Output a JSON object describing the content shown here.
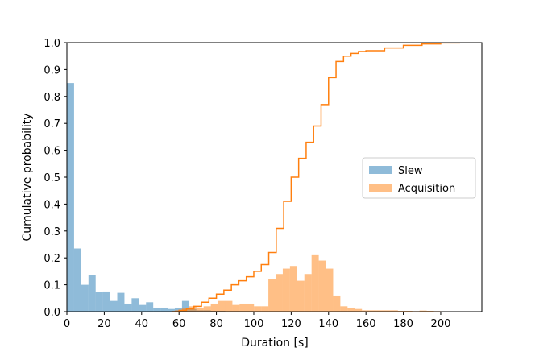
{
  "chart_data": {
    "type": "histogram",
    "xlabel": "Duration [s]",
    "ylabel": "Cumulative probability",
    "xlim": [
      0,
      222
    ],
    "ylim": [
      0,
      1.0
    ],
    "xticks": [
      0,
      20,
      40,
      60,
      80,
      100,
      120,
      140,
      160,
      180,
      200
    ],
    "yticks": [
      0.0,
      0.1,
      0.2,
      0.3,
      0.4,
      0.5,
      0.6,
      0.7,
      0.8,
      0.9,
      1.0
    ],
    "ytick_labels": [
      "0.0",
      "0.1",
      "0.2",
      "0.3",
      "0.4",
      "0.5",
      "0.6",
      "0.7",
      "0.8",
      "0.9",
      "1.0"
    ],
    "legend_position": "center-right",
    "bin_width": 3.85,
    "series": [
      {
        "name": "Slew",
        "kind": "histogram",
        "color": "#1f77b4",
        "alpha": 0.5,
        "bin_starts": [
          0,
          3.85,
          7.7,
          11.55,
          15.4,
          19.25,
          23.1,
          26.95,
          30.8,
          34.65,
          38.5,
          42.35,
          46.2,
          50.05,
          53.9,
          57.75,
          61.6,
          65.45,
          69.3,
          73.15,
          77,
          80.85,
          84.7,
          88.55,
          92.4,
          96.25
        ],
        "values": [
          0.85,
          0.235,
          0.1,
          0.135,
          0.072,
          0.075,
          0.04,
          0.07,
          0.03,
          0.05,
          0.025,
          0.035,
          0.015,
          0.015,
          0.01,
          0.015,
          0.04,
          0.01,
          0.005,
          0.005,
          0.003,
          0.003,
          0.002,
          0.002,
          0.002,
          0.002
        ]
      },
      {
        "name": "Acquisition",
        "kind": "histogram",
        "color": "#ff7f0e",
        "alpha": 0.5,
        "bin_starts": [
          57.75,
          61.6,
          65.45,
          69.3,
          73.15,
          77,
          80.85,
          84.7,
          88.55,
          92.4,
          96.25,
          100.1,
          103.95,
          107.8,
          111.65,
          115.5,
          119.35,
          123.2,
          127.05,
          130.9,
          134.75,
          138.6,
          142.45,
          146.3,
          150.15,
          154,
          157.85,
          161.7,
          165.55,
          169.4,
          173.25,
          177.1,
          180.95,
          184.8,
          188.65,
          192.5,
          196.35
        ],
        "values": [
          0.005,
          0.015,
          0.02,
          0.015,
          0.02,
          0.03,
          0.04,
          0.04,
          0.025,
          0.03,
          0.03,
          0.02,
          0.02,
          0.12,
          0.14,
          0.16,
          0.17,
          0.115,
          0.14,
          0.21,
          0.19,
          0.16,
          0.06,
          0.02,
          0.015,
          0.01,
          0.005,
          0.005,
          0.005,
          0.005,
          0.005,
          0.003,
          0.003,
          0.002,
          0.004,
          0.003,
          0.002
        ]
      },
      {
        "name": "Acquisition (cumulative)",
        "kind": "cumulative-step",
        "color": "#ff7f0e",
        "x": [
          56,
          60,
          64,
          68,
          72,
          76,
          80,
          84,
          88,
          92,
          96,
          100,
          104,
          108,
          112,
          116,
          120,
          124,
          128,
          132,
          136,
          140,
          144,
          148,
          152,
          156,
          160,
          170,
          180,
          190,
          200,
          210
        ],
        "values": [
          0.0,
          0.005,
          0.01,
          0.02,
          0.035,
          0.05,
          0.065,
          0.08,
          0.1,
          0.115,
          0.13,
          0.15,
          0.175,
          0.22,
          0.31,
          0.41,
          0.5,
          0.57,
          0.63,
          0.69,
          0.77,
          0.87,
          0.93,
          0.95,
          0.96,
          0.967,
          0.97,
          0.98,
          0.99,
          0.995,
          0.999,
          1.0
        ]
      }
    ],
    "legend": [
      {
        "label": "Slew",
        "color": "#1f77b4"
      },
      {
        "label": "Acquisition",
        "color": "#ff7f0e"
      }
    ]
  }
}
